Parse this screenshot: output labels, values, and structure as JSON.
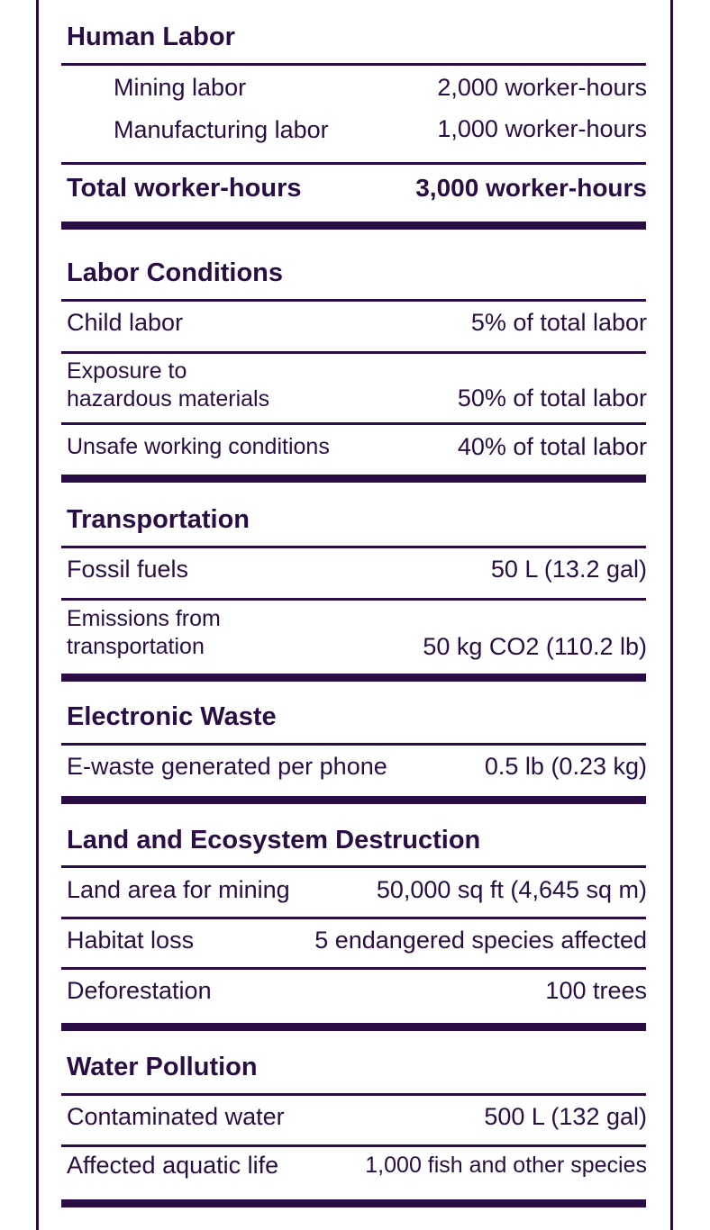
{
  "human_labor": {
    "heading": "Human Labor",
    "rows": [
      {
        "label": "Mining labor",
        "value": "2,000 worker-hours"
      },
      {
        "label": "Manufacturing labor",
        "value": "1,000 worker-hours"
      }
    ],
    "total": {
      "label": "Total worker-hours",
      "value": "3,000 worker-hours"
    }
  },
  "labor_conditions": {
    "heading": "Labor Conditions",
    "rows": [
      {
        "label": "Child labor",
        "value": "5% of total labor"
      },
      {
        "label_line1": "Exposure to",
        "label_line2": "hazardous materials",
        "value": "50% of total labor"
      },
      {
        "label": "Unsafe working conditions",
        "value": "40% of total labor"
      }
    ]
  },
  "transportation": {
    "heading": "Transportation",
    "rows": [
      {
        "label": "Fossil fuels",
        "value": "50 L (13.2 gal)"
      },
      {
        "label_line1": "Emissions from",
        "label_line2": "transportation",
        "value": "50 kg CO2 (110.2 lb)"
      }
    ]
  },
  "electronic_waste": {
    "heading": "Electronic Waste",
    "rows": [
      {
        "label": "E-waste generated per phone",
        "value": "0.5 lb (0.23 kg)"
      }
    ]
  },
  "land": {
    "heading": "Land and Ecosystem Destruction",
    "rows": [
      {
        "label": "Land area for mining",
        "value": "50,000 sq ft (4,645 sq m)"
      },
      {
        "label": "Habitat loss",
        "value": "5 endangered species affected"
      },
      {
        "label": "Deforestation",
        "value": "100 trees"
      }
    ]
  },
  "water": {
    "heading": "Water Pollution",
    "rows": [
      {
        "label": "Contaminated water",
        "value": "500 L (132 gal)"
      },
      {
        "label": "Affected aquatic life",
        "value": "1,000 fish and other species"
      }
    ]
  }
}
